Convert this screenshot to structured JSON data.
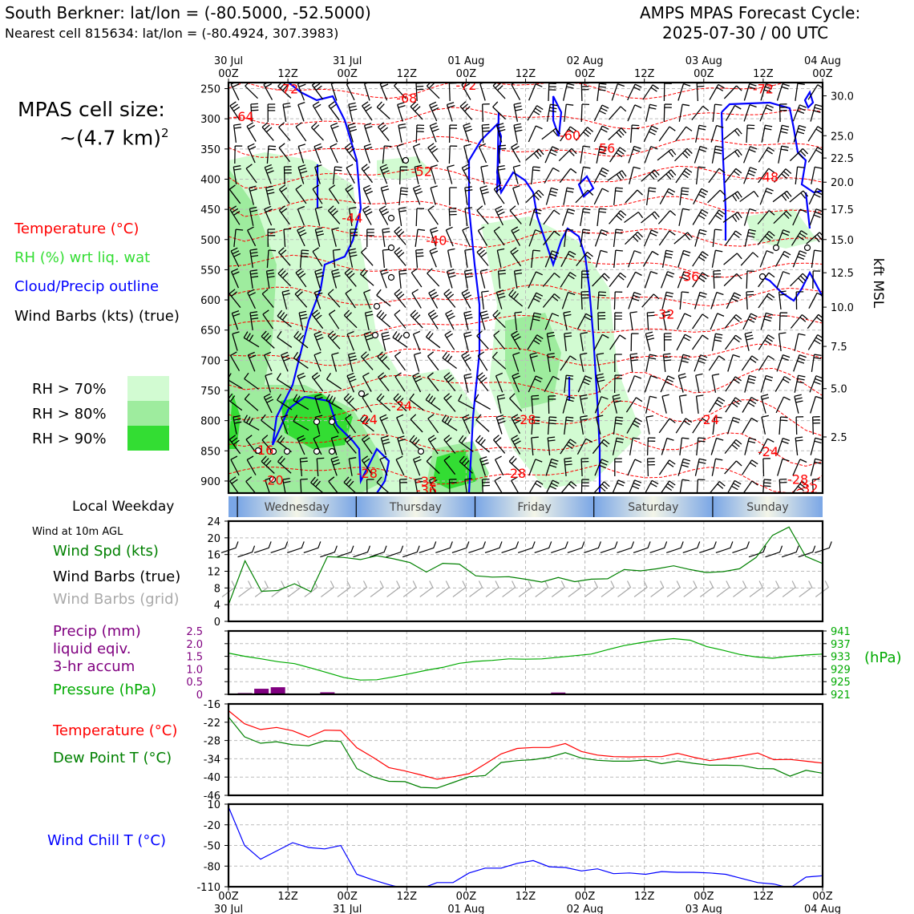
{
  "header": {
    "line1": "South Berkner: lat/lon = (-80.5000, -52.5000)",
    "line2": "Nearest cell 815634: lat/lon = (-80.4924, 307.3983)",
    "right1": "AMPS MPAS Forecast Cycle:",
    "right2": "2025-07-30 / 00 UTC"
  },
  "cell_size": {
    "line1": "MPAS cell size:",
    "line2": "~(4.7 km)",
    "exp": "2"
  },
  "colors": {
    "temperature": "#ff0000",
    "rh": "#33dd33",
    "cloud": "#0000ff",
    "wind": "#000000",
    "rh70": "#d2fbd2",
    "rh80": "#9eec9e",
    "rh90": "#33dd33",
    "precip": "#800080",
    "pressure": "#00aa00",
    "dewpoint": "#008000",
    "grid_barb": "#a9a9a9",
    "windchill": "#0000ff"
  },
  "legend": {
    "temp": "Temperature (°C)",
    "rh": "RH (%) wrt liq. wat",
    "cloud": "Cloud/Precip outline",
    "barbs": "Wind Barbs (kts) (true)"
  },
  "rh_legend": [
    "RH > 70%",
    "RH > 80%",
    "RH > 90%"
  ],
  "time_axis": {
    "top_ticks": [
      {
        "day": "30 Jul",
        "hour": "00Z"
      },
      {
        "day": "",
        "hour": "12Z"
      },
      {
        "day": "31 Jul",
        "hour": "00Z"
      },
      {
        "day": "",
        "hour": "12Z"
      },
      {
        "day": "01 Aug",
        "hour": "00Z"
      },
      {
        "day": "",
        "hour": "12Z"
      },
      {
        "day": "02 Aug",
        "hour": "00Z"
      },
      {
        "day": "",
        "hour": "12Z"
      },
      {
        "day": "03 Aug",
        "hour": "00Z"
      },
      {
        "day": "",
        "hour": "12Z"
      },
      {
        "day": "04 Aug",
        "hour": "00Z"
      }
    ],
    "bottom_ticks": [
      {
        "hour": "00Z",
        "day": "30 Jul"
      },
      {
        "hour": "12Z",
        "day": ""
      },
      {
        "hour": "00Z",
        "day": "31 Jul"
      },
      {
        "hour": "12Z",
        "day": ""
      },
      {
        "hour": "00Z",
        "day": "01 Aug"
      },
      {
        "hour": "12Z",
        "day": ""
      },
      {
        "hour": "00Z",
        "day": "02 Aug"
      },
      {
        "hour": "12Z",
        "day": ""
      },
      {
        "hour": "00Z",
        "day": "03 Aug"
      },
      {
        "hour": "12Z",
        "day": ""
      },
      {
        "hour": "00Z",
        "day": "04 Aug"
      }
    ],
    "hours_range": [
      0,
      120
    ]
  },
  "weekday": {
    "label": "Local Weekday",
    "days": [
      "Wednesday",
      "Thursday",
      "Friday",
      "Saturday",
      "Sunday"
    ],
    "day_start_hours": [
      1.8,
      25.8,
      49.8,
      73.8,
      97.8
    ]
  },
  "chart_data": [
    {
      "type": "heatmap",
      "name": "cross-section",
      "pressure_ticks": [
        250,
        300,
        350,
        400,
        450,
        500,
        550,
        600,
        650,
        700,
        750,
        800,
        850,
        900
      ],
      "ylim": [
        240,
        920
      ],
      "kft_ticks": [
        {
          "label": "30.0",
          "p": 262
        },
        {
          "label": "25.0",
          "p": 328
        },
        {
          "label": "22.5",
          "p": 365
        },
        {
          "label": "20.0",
          "p": 405
        },
        {
          "label": "17.5",
          "p": 450
        },
        {
          "label": "15.0",
          "p": 500
        },
        {
          "label": "12.5",
          "p": 555
        },
        {
          "label": "10.0",
          "p": 612
        },
        {
          "label": "7.5",
          "p": 677
        },
        {
          "label": "5.0",
          "p": 747
        },
        {
          "label": "2.5",
          "p": 827
        }
      ],
      "right_label": "kft MSL",
      "temp_labels": [
        {
          "text": "-72",
          "h": 12,
          "p": 250
        },
        {
          "text": "-72",
          "h": 48,
          "p": 244
        },
        {
          "text": "-72",
          "h": 108,
          "p": 250
        },
        {
          "text": "-68",
          "h": 36,
          "p": 265
        },
        {
          "text": "-64",
          "h": 3,
          "p": 296
        },
        {
          "text": "-60",
          "h": 69,
          "p": 327
        },
        {
          "text": "-56",
          "h": 76,
          "p": 348
        },
        {
          "text": "-52",
          "h": 39,
          "p": 387
        },
        {
          "text": "-48",
          "h": 109,
          "p": 396
        },
        {
          "text": "-44",
          "h": 25,
          "p": 464
        },
        {
          "text": "-40",
          "h": 42,
          "p": 501
        },
        {
          "text": "-36",
          "h": 93,
          "p": 561
        },
        {
          "text": "-32",
          "h": 88,
          "p": 623
        },
        {
          "text": "-24",
          "h": 35,
          "p": 775
        },
        {
          "text": "-24",
          "h": 28,
          "p": 798
        },
        {
          "text": "-28",
          "h": 60,
          "p": 798
        },
        {
          "text": "-24",
          "h": 97,
          "p": 798
        },
        {
          "text": "-24",
          "h": 109,
          "p": 851
        },
        {
          "text": "-16",
          "h": 7,
          "p": 848
        },
        {
          "text": "-28",
          "h": 28,
          "p": 887
        },
        {
          "text": "-28",
          "h": 58,
          "p": 887
        },
        {
          "text": "-28",
          "h": 115,
          "p": 897
        },
        {
          "text": "-20",
          "h": 9,
          "p": 898
        },
        {
          "text": "-32",
          "h": 40,
          "p": 900
        },
        {
          "text": "-36",
          "h": 40,
          "p": 915
        },
        {
          "text": "-32",
          "h": 117,
          "p": 912
        }
      ]
    },
    {
      "type": "line",
      "name": "wind-10m",
      "title": "Wind at 10m AGL",
      "series": [
        {
          "name": "Wind Spd (kts)",
          "values": [
            4,
            14.5,
            7.2,
            7.4,
            9,
            7.1,
            15.5,
            15.3,
            14.8,
            15.7,
            15,
            14.1,
            11.8,
            13.9,
            13.7,
            10.9,
            10.6,
            10.7,
            10.1,
            9.4,
            10.5,
            9.5,
            10.1,
            10.2,
            12.4,
            12.1,
            12.6,
            13.3,
            12.4,
            11.7,
            11.9,
            12.6,
            15.3,
            20.6,
            22.6,
            15.6,
            13.9
          ]
        }
      ],
      "x_hours_step": 3.33,
      "ylim": [
        0,
        24
      ],
      "yticks": [
        0,
        4,
        8,
        12,
        16,
        20,
        24
      ],
      "legend": [
        "Wind Spd (kts)",
        "Wind Barbs (true)",
        "Wind Barbs (grid)"
      ]
    },
    {
      "type": "line",
      "name": "precip-pressure",
      "series": [
        {
          "name": "Pressure (hPa)",
          "values": [
            934,
            933,
            932.2,
            931.3,
            930.7,
            929.3,
            927.8,
            926.3,
            925.5,
            925.6,
            926.5,
            927.5,
            928.6,
            929.5,
            930.8,
            931.4,
            931.7,
            932.2,
            932.1,
            932.2,
            932.7,
            933.2,
            933.7,
            935.1,
            936.4,
            937.3,
            938.1,
            938.6,
            938.1,
            936.1,
            934.9,
            933.6,
            932.8,
            932.4,
            933,
            933.4,
            933.7
          ]
        },
        {
          "name": "Precip (mm)",
          "values": [
            0,
            0.05,
            0.22,
            0.28,
            0,
            0,
            0.08,
            0,
            0,
            0,
            0,
            0,
            0,
            0,
            0,
            0,
            0,
            0,
            0,
            0,
            0.07,
            0,
            0,
            0,
            0,
            0,
            0,
            0,
            0,
            0,
            0,
            0,
            0,
            0,
            0,
            0,
            0
          ]
        }
      ],
      "x_hours_step": 3.33,
      "precip_ylim": [
        0,
        2.5
      ],
      "precip_yticks": [
        "0",
        "0.5",
        "1.0",
        "1.5",
        "2.0",
        "2.5"
      ],
      "pressure_ylim": [
        921,
        941
      ],
      "pressure_yticks": [
        921,
        925,
        929,
        933,
        937,
        941
      ],
      "right_label": "(hPa)",
      "legend": [
        "Precip (mm)",
        "liquid eqiv.",
        "3-hr accum",
        "Pressure (hPa)"
      ]
    },
    {
      "type": "line",
      "name": "temperature-dewpoint",
      "series": [
        {
          "name": "Temperature (°C)",
          "values": [
            -18.2,
            -22.5,
            -24.4,
            -23.7,
            -24.8,
            -26.9,
            -24.6,
            -24.7,
            -30.4,
            -33.5,
            -36.9,
            -38,
            -39.3,
            -40.7,
            -39.9,
            -38.9,
            -35.7,
            -32.4,
            -30.6,
            -30.3,
            -30.3,
            -29,
            -31.6,
            -32.8,
            -33.3,
            -33.4,
            -33.3,
            -33.3,
            -32.2,
            -33.5,
            -34.6,
            -33.9,
            -33,
            -32.1,
            -34.3,
            -34.2,
            -34.8,
            -35.4
          ]
        },
        {
          "name": "Dew Point T (°C)",
          "values": [
            -20.3,
            -26.8,
            -28.9,
            -28.4,
            -29.4,
            -29.7,
            -28.1,
            -28.3,
            -37.2,
            -39.9,
            -41.4,
            -41.5,
            -43.4,
            -43.6,
            -41.8,
            -39.9,
            -39.5,
            -35.2,
            -34.6,
            -34.3,
            -33.5,
            -32,
            -33.8,
            -34.5,
            -34.8,
            -34.8,
            -34.4,
            -35.6,
            -34.7,
            -35.5,
            -36.1,
            -36.1,
            -36.2,
            -37.2,
            -37.3,
            -39.7,
            -37.8,
            -38.7
          ]
        }
      ],
      "x_hours_step": 3.24,
      "ylim": [
        -46,
        -16
      ],
      "yticks": [
        -46,
        -40,
        -34,
        -28,
        -22,
        -16
      ]
    },
    {
      "type": "line",
      "name": "wind-chill",
      "series": [
        {
          "name": "Wind Chill T (°C)",
          "values": [
            6,
            -50,
            -70,
            -58,
            -46,
            -53,
            -55,
            -50,
            -92,
            -100,
            -107,
            -113,
            -113,
            -104,
            -104,
            -90,
            -83,
            -83,
            -76,
            -72,
            -81,
            -82,
            -87,
            -84,
            -91,
            -90,
            -92,
            -88,
            -89,
            -89,
            -90,
            -92,
            -98,
            -104,
            -106,
            -112,
            -96,
            -94
          ]
        }
      ],
      "x_hours_step": 3.24,
      "ylim": [
        -110,
        10
      ],
      "yticks": [
        "10",
        "-20",
        "-50",
        "-80",
        "-110"
      ]
    }
  ]
}
